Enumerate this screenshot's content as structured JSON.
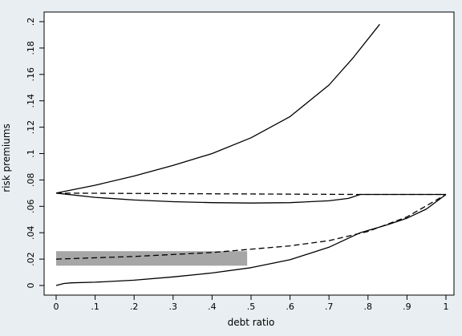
{
  "chart_data": {
    "type": "line",
    "xlabel": "debt ratio",
    "ylabel": "risk premiums",
    "xlim": [
      0,
      1
    ],
    "ylim": [
      0,
      0.2
    ],
    "x_ticks": [
      "0",
      ".1",
      ".2",
      ".3",
      ".4",
      ".5",
      ".6",
      ".7",
      ".8",
      ".9",
      "1"
    ],
    "y_ticks": [
      ".2",
      ".18",
      ".16",
      ".14",
      ".12",
      ".1",
      ".08",
      ".06",
      ".04",
      ".02",
      "0"
    ],
    "grid": false,
    "legend": "none",
    "colors": {
      "background": "#e8eef1",
      "plot_area": "#ffffff",
      "series": "#000000",
      "band": "#a6a6a6"
    },
    "band": {
      "x": [
        0,
        0.49
      ],
      "y": [
        0.015,
        0.026
      ]
    },
    "series": [
      {
        "style": "solid",
        "x": [
          0,
          0.1,
          0.2,
          0.3,
          0.4,
          0.5,
          0.6,
          0.7,
          0.76,
          0.83
        ],
        "y": [
          0.07,
          0.076,
          0.083,
          0.091,
          0.1,
          0.112,
          0.128,
          0.152,
          0.172,
          0.198
        ]
      },
      {
        "style": "dashed",
        "x": [
          0,
          0.78,
          1
        ],
        "y": [
          0.07,
          0.069,
          0.069
        ]
      },
      {
        "style": "solid",
        "x": [
          0,
          0.1,
          0.2,
          0.3,
          0.4,
          0.5,
          0.6,
          0.7,
          0.75,
          0.78,
          1
        ],
        "y": [
          0.07,
          0.0668,
          0.0648,
          0.0635,
          0.0628,
          0.0625,
          0.0628,
          0.0642,
          0.066,
          0.069,
          0.069
        ]
      },
      {
        "style": "dashed",
        "x": [
          0,
          0.2,
          0.4,
          0.6,
          0.7,
          0.8,
          0.9,
          1
        ],
        "y": [
          0.02,
          0.022,
          0.025,
          0.03,
          0.034,
          0.041,
          0.052,
          0.069
        ]
      },
      {
        "style": "solid",
        "x": [
          0,
          0.02,
          0.04,
          0.1,
          0.2,
          0.3,
          0.4,
          0.5,
          0.6,
          0.7,
          0.78,
          0.85,
          0.9,
          0.95,
          1
        ],
        "y": [
          0,
          0.0015,
          0.002,
          0.0025,
          0.004,
          0.0065,
          0.0095,
          0.0135,
          0.0195,
          0.029,
          0.04,
          0.046,
          0.051,
          0.058,
          0.069
        ]
      }
    ]
  }
}
